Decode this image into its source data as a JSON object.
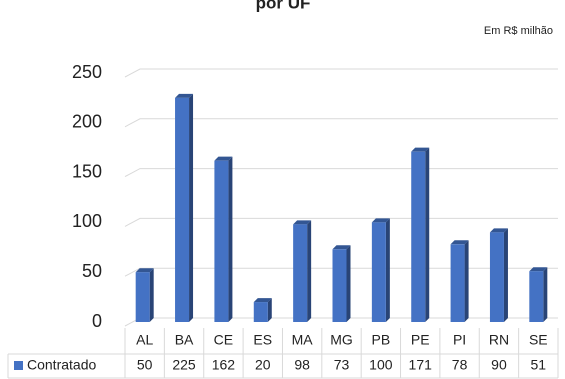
{
  "chart_data": {
    "type": "bar3d",
    "title": "por UF",
    "subtitle": "Em R$ milhão",
    "categories": [
      "AL",
      "BA",
      "CE",
      "ES",
      "MA",
      "MG",
      "PB",
      "PE",
      "PI",
      "RN",
      "SE"
    ],
    "series": [
      {
        "name": "Contratado",
        "color": "#4472c4",
        "values": [
          50,
          225,
          162,
          20,
          98,
          73,
          100,
          171,
          78,
          90,
          51
        ]
      }
    ],
    "ylim": [
      0,
      250
    ],
    "yticks": [
      0,
      50,
      100,
      150,
      200,
      250
    ],
    "grid": true,
    "data_table": true
  }
}
